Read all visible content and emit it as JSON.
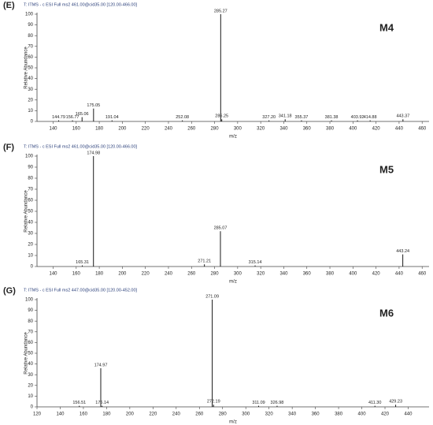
{
  "chart_data": [
    {
      "type": "spectrum",
      "title": "T: ITMS - c ESI Full ms2 461.00@cid35.00 [120.00-466.00]",
      "panel_label": "(E)",
      "annotation": "M4",
      "xlabel": "m/z",
      "ylabel": "Relative Abundance",
      "color": "#000000",
      "xlim": [
        126,
        466
      ],
      "xticks": [
        140,
        160,
        180,
        200,
        220,
        240,
        260,
        280,
        300,
        320,
        340,
        360,
        380,
        400,
        420,
        440,
        460
      ],
      "ylim": [
        0,
        100
      ],
      "yticks": [
        0,
        10,
        20,
        30,
        40,
        50,
        60,
        70,
        80,
        90,
        100
      ],
      "x": [
        144.79,
        156.77,
        165.06,
        175.05,
        191.04,
        252.08,
        285.27,
        286.25,
        327.2,
        341.18,
        355.37,
        381.38,
        403.92,
        414.88,
        443.37
      ],
      "x_labels": [
        "144.79",
        "156.77",
        "165.06",
        "175.05",
        "191.04",
        "252.08",
        "285.27",
        "286.25",
        "327.20",
        "341.18",
        "355.37",
        "381.38",
        "403.92",
        "414.88",
        "443.37"
      ],
      "values": [
        1,
        1,
        4,
        12,
        1,
        1,
        100,
        2,
        1,
        2,
        1,
        1,
        1,
        1,
        2
      ]
    },
    {
      "type": "spectrum",
      "title": "T: ITMS - c ESI Full ms2 461.00@cid35.00 [120.00-466.00]",
      "panel_label": "(F)",
      "annotation": "M5",
      "xlabel": "m/z",
      "ylabel": "Relative Abundance",
      "color": "#000000",
      "xlim": [
        126,
        466
      ],
      "xticks": [
        140,
        160,
        180,
        200,
        220,
        240,
        260,
        280,
        300,
        320,
        340,
        360,
        380,
        400,
        420,
        440,
        460
      ],
      "ylim": [
        0,
        100
      ],
      "yticks": [
        0,
        10,
        20,
        30,
        40,
        50,
        60,
        70,
        80,
        90,
        100
      ],
      "x": [
        165.31,
        174.98,
        271.21,
        285.07,
        315.14,
        443.24
      ],
      "x_labels": [
        "165.31",
        "174.98",
        "271.21",
        "285.07",
        "315.14",
        "443.24"
      ],
      "values": [
        1,
        100,
        2,
        32,
        1,
        11
      ]
    },
    {
      "type": "spectrum",
      "title": "T: ITMS - c ESI Full ms2 447.00@cid35.00 [120.00-452.00]",
      "panel_label": "(G)",
      "annotation": "M6",
      "xlabel": "m/z",
      "ylabel": "Relative Abundance",
      "color": "#000000",
      "xlim": [
        120,
        458
      ],
      "xticks": [
        120,
        140,
        160,
        180,
        200,
        220,
        240,
        260,
        280,
        300,
        320,
        340,
        360,
        380,
        400,
        420,
        440
      ],
      "ylim": [
        0,
        100
      ],
      "yticks": [
        0,
        10,
        20,
        30,
        40,
        50,
        60,
        70,
        80,
        90,
        100
      ],
      "x": [
        156.51,
        174.97,
        176.14,
        271.09,
        272.19,
        311.09,
        326.98,
        411.3,
        429.23
      ],
      "x_labels": [
        "156.51",
        "174.97",
        "176.14",
        "271.09",
        "272.19",
        "311.09",
        "326.98",
        "411.30",
        "429.23"
      ],
      "values": [
        1,
        36,
        1,
        100,
        2,
        1,
        1,
        1,
        2
      ]
    }
  ]
}
